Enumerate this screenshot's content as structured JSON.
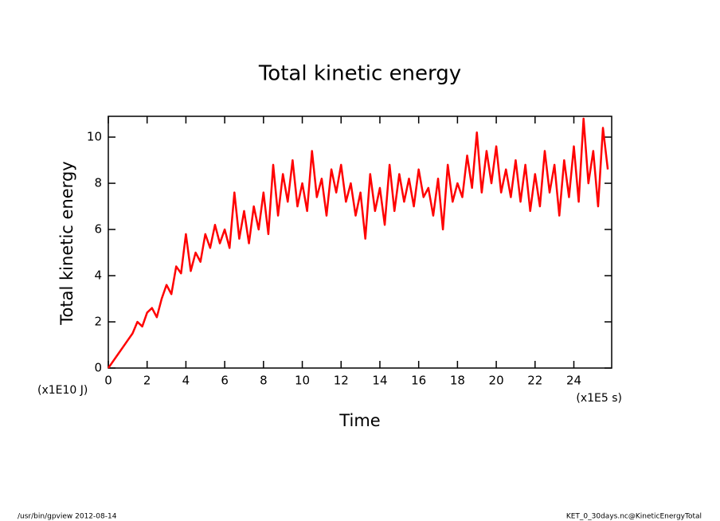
{
  "chart_data": {
    "type": "line",
    "title": "Total kinetic energy",
    "ylabel": "Total kinetic energy",
    "xlabel": "Time",
    "yunit": "(x1E10 J)",
    "xunit": "(x1E5 s)",
    "footer_left": "/usr/bin/gpview  2012-08-14",
    "footer_right": "KET_0_30days.nc@KineticEnergyTotal",
    "xlim": [
      0,
      25.95
    ],
    "ylim": [
      0,
      10.9
    ],
    "xticks": [
      0,
      2,
      4,
      6,
      8,
      10,
      12,
      14,
      16,
      18,
      20,
      22,
      24
    ],
    "yticks": [
      0,
      2,
      4,
      6,
      8,
      10
    ],
    "series": [
      {
        "name": "Total kinetic energy",
        "color": "#ff0000",
        "x": [
          0,
          0.25,
          0.5,
          0.75,
          1,
          1.25,
          1.5,
          1.75,
          2,
          2.25,
          2.5,
          2.75,
          3,
          3.25,
          3.5,
          3.75,
          4,
          4.25,
          4.5,
          4.75,
          5,
          5.25,
          5.5,
          5.75,
          6,
          6.25,
          6.5,
          6.75,
          7,
          7.25,
          7.5,
          7.75,
          8,
          8.25,
          8.5,
          8.75,
          9,
          9.25,
          9.5,
          9.75,
          10,
          10.25,
          10.5,
          10.75,
          11,
          11.25,
          11.5,
          11.75,
          12,
          12.25,
          12.5,
          12.75,
          13,
          13.25,
          13.5,
          13.75,
          14,
          14.25,
          14.5,
          14.75,
          15,
          15.25,
          15.5,
          15.75,
          16,
          16.25,
          16.5,
          16.75,
          17,
          17.25,
          17.5,
          17.75,
          18,
          18.25,
          18.5,
          18.75,
          19,
          19.25,
          19.5,
          19.75,
          20,
          20.25,
          20.5,
          20.75,
          21,
          21.25,
          21.5,
          21.75,
          22,
          22.25,
          22.5,
          22.75,
          23,
          23.25,
          23.5,
          23.75,
          24,
          24.25,
          24.5,
          24.75,
          25,
          25.25,
          25.5,
          25.75
        ],
        "values": [
          0,
          0.3,
          0.6,
          0.9,
          1.2,
          1.5,
          2.0,
          1.8,
          2.4,
          2.6,
          2.2,
          3.0,
          3.6,
          3.2,
          4.4,
          4.1,
          5.8,
          4.2,
          5.0,
          4.6,
          5.8,
          5.2,
          6.2,
          5.4,
          6.0,
          5.2,
          7.6,
          5.6,
          6.8,
          5.4,
          7.0,
          6.0,
          7.6,
          5.8,
          8.8,
          6.6,
          8.4,
          7.2,
          9.0,
          7.0,
          8.0,
          6.8,
          9.4,
          7.4,
          8.2,
          6.6,
          8.6,
          7.6,
          8.8,
          7.2,
          8.0,
          6.6,
          7.6,
          5.6,
          8.4,
          6.8,
          7.8,
          6.2,
          8.8,
          6.8,
          8.4,
          7.2,
          8.2,
          7.0,
          8.6,
          7.4,
          7.8,
          6.6,
          8.2,
          6.0,
          8.8,
          7.2,
          8.0,
          7.4,
          9.2,
          7.8,
          10.2,
          7.6,
          9.4,
          8.0,
          9.6,
          7.6,
          8.6,
          7.4,
          9.0,
          7.2,
          8.8,
          6.8,
          8.4,
          7.0,
          9.4,
          7.6,
          8.8,
          6.6,
          9.0,
          7.4,
          9.6,
          7.2,
          10.8,
          8.0,
          9.4,
          7.0,
          10.4,
          8.6
        ]
      }
    ]
  }
}
